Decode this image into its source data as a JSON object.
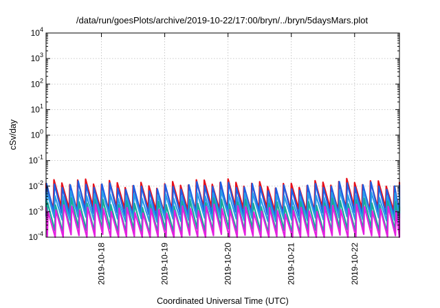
{
  "chart_data": {
    "type": "line",
    "title": "/data/run/goesPlots/archive/2019-10-22/17:00/bryn/../bryn/5daysMars.plot",
    "xlabel": "Coordinated Universal Time (UTC)",
    "ylabel": "cSv/day",
    "y_scale": "log",
    "ylim": [
      0.0001,
      10000
    ],
    "y_ticks": [
      {
        "base": "10",
        "exp": "-4",
        "value": 0.0001
      },
      {
        "base": "10",
        "exp": "-3",
        "value": 0.001
      },
      {
        "base": "10",
        "exp": "-2",
        "value": 0.01
      },
      {
        "base": "10",
        "exp": "-1",
        "value": 0.1
      },
      {
        "base": "10",
        "exp": "0",
        "value": 1
      },
      {
        "base": "10",
        "exp": "1",
        "value": 10
      },
      {
        "base": "10",
        "exp": "2",
        "value": 100
      },
      {
        "base": "10",
        "exp": "3",
        "value": 1000
      },
      {
        "base": "10",
        "exp": "4",
        "value": 10000
      }
    ],
    "xlim": [
      "2019-10-17T03:00",
      "2019-10-22T17:00"
    ],
    "x_ticks": [
      "2019-10-18",
      "2019-10-19",
      "2019-10-20",
      "2019-10-21",
      "2019-10-22"
    ],
    "grid": true,
    "legend": "none",
    "sawtooth_period_hours": 3,
    "series": [
      {
        "color": "#e8101a",
        "peak_log10": -1.9,
        "trough_log10": -2.9
      },
      {
        "color": "#1d5fe6",
        "peak_log10": -2.0,
        "trough_log10": -3.1
      },
      {
        "color": "#2a9be8",
        "peak_log10": -2.35,
        "trough_log10": -3.3
      },
      {
        "color": "#18a89a",
        "peak_log10": -2.65,
        "trough_log10": -3.75
      },
      {
        "color": "#e51fe0",
        "peak_log10": -2.9,
        "trough_log10": -4.0
      }
    ]
  }
}
